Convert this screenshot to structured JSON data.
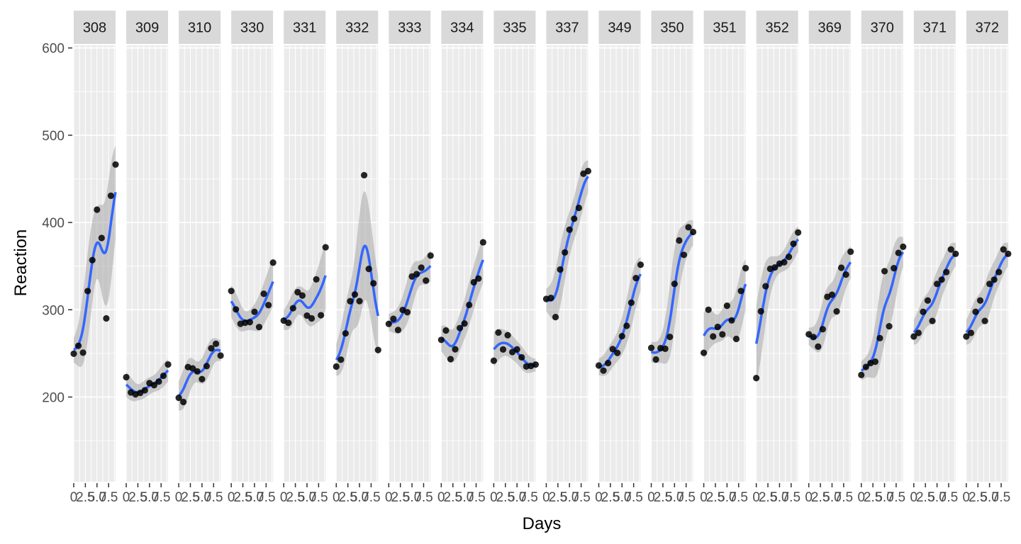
{
  "chart_data": {
    "type": "scatter",
    "title": "",
    "xlabel": "Days",
    "ylabel": "Reaction",
    "xlim": [
      0,
      9
    ],
    "ylim": [
      103,
      603
    ],
    "x_ticks": [
      0,
      2.5,
      5,
      7.5
    ],
    "x_tick_labels": [
      "0",
      "2.5",
      "5.0",
      "7.5"
    ],
    "y_ticks": [
      200,
      300,
      400,
      500,
      600
    ],
    "y_tick_labels": [
      "200",
      "300",
      "400",
      "500",
      "600"
    ],
    "grid": true,
    "legend": "none",
    "smooth": "loess with grey confidence band",
    "colors": {
      "panel_bg": "#ebebeb",
      "strip_bg": "#d9d9d9",
      "grid_line": "#ffffff",
      "point": "#000000",
      "smooth_line": "#3366ff",
      "ribbon": "#999999",
      "axis_text": "#4d4d4d",
      "title_text": "#000000"
    },
    "panels": [
      {
        "subject": "308",
        "x": [
          0,
          1,
          2,
          3,
          4,
          5,
          6,
          7,
          8,
          9
        ],
        "y": [
          249.6,
          258.7,
          250.8,
          321.4,
          356.9,
          414.7,
          382.2,
          290.1,
          430.6,
          466.4
        ]
      },
      {
        "subject": "309",
        "x": [
          0,
          1,
          2,
          3,
          4,
          5,
          6,
          7,
          8,
          9
        ],
        "y": [
          222.7,
          205.3,
          203.0,
          204.7,
          207.7,
          215.9,
          213.6,
          217.7,
          224.3,
          237.3
        ]
      },
      {
        "subject": "310",
        "x": [
          0,
          1,
          2,
          3,
          4,
          5,
          6,
          7,
          8,
          9
        ],
        "y": [
          199.1,
          194.3,
          234.3,
          232.8,
          229.3,
          220.5,
          235.4,
          255.8,
          261.0,
          247.5
        ]
      },
      {
        "subject": "330",
        "x": [
          0,
          1,
          2,
          3,
          4,
          5,
          6,
          7,
          8,
          9
        ],
        "y": [
          321.5,
          300.4,
          283.9,
          285.1,
          285.8,
          297.6,
          280.2,
          318.3,
          305.3,
          354.0
        ]
      },
      {
        "subject": "331",
        "x": [
          0,
          1,
          2,
          3,
          4,
          5,
          6,
          7,
          8,
          9
        ],
        "y": [
          287.6,
          285.0,
          301.8,
          320.1,
          316.3,
          293.3,
          290.1,
          334.8,
          293.7,
          371.6
        ]
      },
      {
        "subject": "332",
        "x": [
          0,
          1,
          2,
          3,
          4,
          5,
          6,
          7,
          8,
          9
        ],
        "y": [
          234.9,
          242.8,
          272.9,
          309.8,
          317.5,
          309.9,
          454.2,
          346.8,
          330.3,
          253.9
        ]
      },
      {
        "subject": "333",
        "x": [
          0,
          1,
          2,
          3,
          4,
          5,
          6,
          7,
          8,
          9
        ],
        "y": [
          283.8,
          289.6,
          276.8,
          299.8,
          297.2,
          338.1,
          340.8,
          348.3,
          333.4,
          362.0
        ]
      },
      {
        "subject": "334",
        "x": [
          0,
          1,
          2,
          3,
          4,
          5,
          6,
          7,
          8,
          9
        ],
        "y": [
          265.5,
          276.2,
          243.4,
          254.7,
          279.0,
          284.2,
          305.5,
          331.5,
          335.8,
          377.3
        ]
      },
      {
        "subject": "335",
        "x": [
          0,
          1,
          2,
          3,
          4,
          5,
          6,
          7,
          8,
          9
        ],
        "y": [
          241.6,
          273.9,
          254.5,
          270.8,
          251.5,
          254.6,
          245.5,
          235.0,
          235.6,
          237.2
        ]
      },
      {
        "subject": "337",
        "x": [
          0,
          1,
          2,
          3,
          4,
          5,
          6,
          7,
          8,
          9
        ],
        "y": [
          312.4,
          313.6,
          291.6,
          346.1,
          365.7,
          391.8,
          404.3,
          416.7,
          455.9,
          458.9
        ]
      },
      {
        "subject": "349",
        "x": [
          0,
          1,
          2,
          3,
          4,
          5,
          6,
          7,
          8,
          9
        ],
        "y": [
          236.1,
          230.3,
          238.9,
          254.9,
          250.5,
          269.7,
          281.6,
          308.1,
          336.3,
          351.6
        ]
      },
      {
        "subject": "350",
        "x": [
          0,
          1,
          2,
          3,
          4,
          5,
          6,
          7,
          8,
          9
        ],
        "y": [
          256.3,
          243.0,
          256.0,
          255.3,
          268.9,
          329.7,
          379.4,
          362.9,
          394.5,
          389.1
        ]
      },
      {
        "subject": "351",
        "x": [
          0,
          1,
          2,
          3,
          4,
          5,
          6,
          7,
          8,
          9
        ],
        "y": [
          250.6,
          300.0,
          269.4,
          280.4,
          271.8,
          304.6,
          287.8,
          266.6,
          321.5,
          347.6
        ]
      },
      {
        "subject": "352",
        "x": [
          0,
          1,
          2,
          3,
          4,
          5,
          6,
          7,
          8,
          9
        ],
        "y": [
          221.7,
          298.2,
          326.9,
          346.9,
          348.5,
          352.8,
          354.4,
          360.6,
          375.6,
          388.5
        ]
      },
      {
        "subject": "369",
        "x": [
          0,
          1,
          2,
          3,
          4,
          5,
          6,
          7,
          8,
          9
        ],
        "y": [
          271.9,
          268.7,
          257.7,
          277.7,
          314.8,
          317.2,
          298.1,
          348.1,
          340.3,
          366.5
        ]
      },
      {
        "subject": "370",
        "x": [
          0,
          1,
          2,
          3,
          4,
          5,
          6,
          7,
          8,
          9
        ],
        "y": [
          225.3,
          234.5,
          238.9,
          240.5,
          267.5,
          344.2,
          281.1,
          347.6,
          365.2,
          372.2
        ]
      },
      {
        "subject": "371",
        "x": [
          0,
          1,
          2,
          3,
          4,
          5,
          6,
          7,
          8,
          9
        ],
        "y": [
          269.4,
          273.5,
          297.6,
          310.6,
          287.2,
          329.6,
          334.5,
          343.2,
          369.1,
          364.1
        ]
      },
      {
        "subject": "372",
        "x": [
          0,
          1,
          2,
          3,
          4,
          5,
          6,
          7,
          8,
          9
        ],
        "y": [
          269.4,
          273.5,
          297.6,
          310.6,
          287.2,
          329.6,
          334.5,
          343.2,
          369.1,
          364.1
        ]
      }
    ]
  }
}
